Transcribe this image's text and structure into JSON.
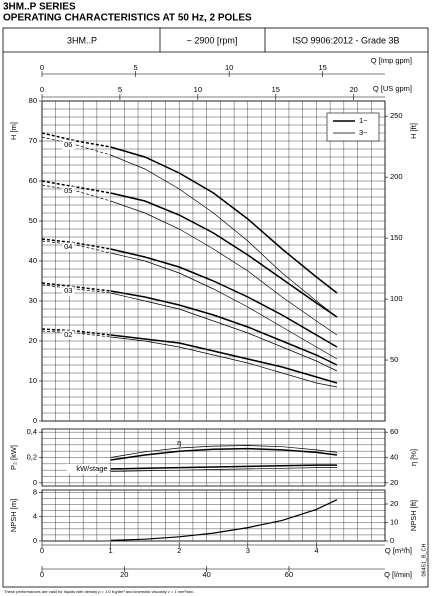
{
  "header": {
    "title": "3HM..P SERIES",
    "subtitle": "OPERATING CHARACTERISTICS AT 50 Hz, 2 POLES",
    "cells": [
      "3HM..P",
      "~ 2900 [rpm]",
      "ISO 9906:2012 - Grade 3B"
    ],
    "code": "06451_B_CH",
    "footnote": "These performances are valid for liquids with density ρ = 1.0 Kg/dm³ and kinematic viscosity ν = 1 mm²/sec."
  },
  "q_axes": [
    {
      "label": "Q [Imp gpm]",
      "xlim": [
        0,
        18.33
      ],
      "xticks": [
        0,
        5,
        10,
        15
      ]
    },
    {
      "label": "Q [US gpm]",
      "xlim": [
        0,
        22.01
      ],
      "xticks": [
        0,
        5,
        10,
        15,
        20
      ]
    },
    {
      "label": "Q [m³/h]",
      "xlim": [
        0,
        5
      ],
      "xticks": [
        0,
        1,
        2,
        3,
        4
      ]
    },
    {
      "label": "Q [l/min]",
      "xlim": [
        0,
        83.33
      ],
      "xticks": [
        0,
        20,
        40,
        60
      ]
    }
  ],
  "chart_data": [
    {
      "type": "line",
      "ylabel": "H [m]",
      "y2label": "H [ft]",
      "xlim": [
        0,
        5
      ],
      "ylim": [
        0,
        80
      ],
      "yticks": [
        0,
        10,
        20,
        30,
        40,
        50,
        60,
        70,
        80
      ],
      "y2lim": [
        0,
        262.47
      ],
      "y2ticks": [
        50,
        100,
        150,
        200,
        250
      ],
      "grid": true,
      "minor": [
        5,
        5
      ],
      "legend": "upper right",
      "x": [
        0,
        0.5,
        1,
        1.5,
        2,
        2.5,
        3,
        3.5,
        4,
        4.3
      ],
      "curve_labels": [
        "06",
        "05",
        "04",
        "03",
        "02"
      ],
      "series": [
        {
          "name": "1~",
          "color": "#000000",
          "width": 1.5,
          "values": [
            [
              72,
              70,
              68.5,
              66,
              62,
              57,
              50.5,
              43,
              36,
              32
            ],
            [
              60,
              58.5,
              57,
              55,
              51.5,
              47,
              41.5,
              35.5,
              29.5,
              26
            ],
            [
              45.5,
              44.5,
              43,
              41,
              38.5,
              35,
              31,
              26.5,
              21.5,
              18.5
            ],
            [
              34.5,
              33.5,
              32.5,
              31,
              29,
              26.5,
              23.5,
              20,
              16.5,
              14
            ],
            [
              23,
              22.5,
              21.5,
              20.5,
              19.5,
              17.5,
              15.5,
              13.5,
              11,
              9.5
            ]
          ]
        },
        {
          "name": "3~",
          "color": "#000000",
          "width": 0.7,
          "values": [
            [
              71,
              69,
              66.5,
              63,
              58,
              52,
              45,
              37,
              30,
              26
            ],
            [
              59,
              57.5,
              55,
              52,
              48,
              43,
              37.5,
              31,
              25,
              21.5
            ],
            [
              45,
              44,
              42,
              40,
              37,
              33,
              28.5,
              23.5,
              18.5,
              15.5
            ],
            [
              34,
              33,
              32,
              30,
              28,
              25,
              22,
              18.5,
              15,
              12.5
            ],
            [
              22.5,
              22,
              21,
              20,
              18.5,
              16.5,
              14.5,
              12,
              9.5,
              8.5
            ]
          ]
        }
      ]
    },
    {
      "type": "line",
      "ylabel": "P₂ [kW]",
      "y2label": "η [%]",
      "xlim": [
        0,
        5
      ],
      "ylim": [
        -0.025,
        0.425
      ],
      "yticks": [
        0,
        {
          "value": 0.2,
          "label": "0,2"
        },
        {
          "value": 0.4,
          "label": "0,4"
        }
      ],
      "y2lim": [
        17.5,
        62.5
      ],
      "y2ticks": [
        20,
        40,
        60
      ],
      "grid": true,
      "minor": [
        5,
        4
      ],
      "curve_widths": [
        1.5,
        0.7
      ],
      "x": [
        1,
        1.5,
        2,
        2.5,
        3,
        3.5,
        4,
        4.3
      ],
      "series": [
        {
          "name": "η",
          "axis": "y2",
          "color": "#000000",
          "values": [
            [
              38,
              42,
              45,
              46.5,
              47,
              46,
              44,
              42
            ],
            [
              40,
              44.5,
              47.5,
              49,
              49.5,
              48.5,
              46,
              44
            ]
          ]
        },
        {
          "name": "kW/stage",
          "color": "#000000",
          "values": [
            [
              0.11,
              0.115,
              0.12,
              0.125,
              0.13,
              0.135,
              0.14,
              0.14
            ],
            [
              0.09,
              0.095,
              0.1,
              0.105,
              0.11,
              0.115,
              0.12,
              0.12
            ]
          ]
        }
      ]
    },
    {
      "type": "line",
      "ylabel": "NPSH [m]",
      "y2label": "NPSH [ft]",
      "xlim": [
        0,
        5
      ],
      "ylim": [
        0,
        8.4
      ],
      "yticks": [
        0,
        4,
        8
      ],
      "y2lim": [
        0,
        27.56
      ],
      "y2ticks": [
        0,
        10,
        20
      ],
      "grid": true,
      "minor": [
        5,
        4
      ],
      "curve_widths": [
        1.2
      ],
      "x": [
        1,
        1.5,
        2,
        2.5,
        3,
        3.5,
        4,
        4.3
      ],
      "series": [
        {
          "color": "#000000",
          "values": [
            [
              0.1,
              0.3,
              0.7,
              1.3,
              2.2,
              3.4,
              5.2,
              6.8
            ]
          ]
        }
      ]
    }
  ]
}
